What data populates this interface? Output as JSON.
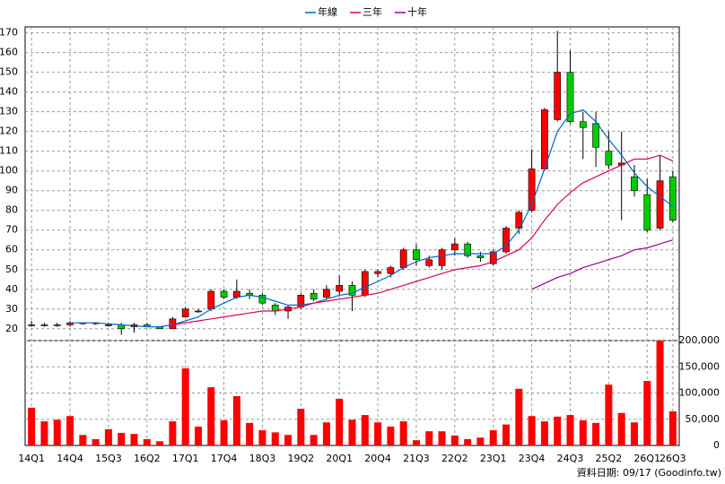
{
  "chart_data": {
    "type": "candlestick",
    "categories": [
      "14Q1",
      null,
      null,
      "14Q4",
      null,
      null,
      "15Q3",
      null,
      null,
      "16Q2",
      null,
      null,
      "17Q1",
      null,
      null,
      "17Q4",
      null,
      null,
      "18Q3",
      null,
      null,
      "19Q2",
      null,
      null,
      "20Q1",
      null,
      null,
      "20Q4",
      null,
      null,
      "21Q3",
      null,
      null,
      "22Q2",
      null,
      null,
      "23Q1",
      null,
      null,
      "23Q4",
      null,
      null,
      "24Q3",
      null,
      null,
      "25Q2",
      null,
      null,
      "26Q1",
      null,
      "26Q3"
    ],
    "open": [
      22,
      22,
      22,
      22,
      23,
      23,
      22,
      22,
      21,
      22,
      21,
      20,
      26,
      29,
      30,
      39,
      36,
      38,
      37,
      32,
      29,
      31,
      38,
      36,
      39,
      42,
      37,
      48,
      48,
      51,
      60,
      52,
      52,
      60,
      63,
      57,
      53,
      59,
      71,
      80,
      101,
      126,
      150,
      125,
      124,
      110,
      103,
      97,
      88,
      71,
      97
    ],
    "high": [
      24,
      23,
      23,
      24,
      23,
      23,
      23,
      23,
      23,
      23,
      21,
      26,
      31,
      30,
      40,
      40,
      45,
      40,
      38,
      33,
      32,
      38,
      40,
      42,
      47,
      44,
      50,
      50,
      52,
      61,
      63,
      57,
      61,
      66,
      64,
      59,
      60,
      72,
      80,
      111,
      132,
      171,
      161,
      130,
      130,
      120,
      120,
      103,
      96,
      108,
      100
    ],
    "low": [
      21,
      21,
      21,
      21,
      22,
      22,
      21,
      17,
      18,
      21,
      20,
      20,
      26,
      28,
      29,
      35,
      35,
      35,
      32,
      27,
      25,
      30,
      34,
      35,
      37,
      29,
      36,
      46,
      46,
      50,
      52,
      51,
      50,
      57,
      56,
      54,
      52,
      58,
      68,
      79,
      100,
      125,
      124,
      106,
      102,
      101,
      75,
      87,
      69,
      70,
      74
    ],
    "close": [
      22,
      22,
      22,
      23,
      23,
      23,
      22,
      20,
      22,
      21,
      20,
      25,
      30,
      29,
      39,
      36,
      39,
      37,
      33,
      29,
      31,
      37,
      35,
      40,
      42,
      37,
      49,
      49,
      51,
      60,
      55,
      55,
      60,
      63,
      57,
      56,
      59,
      71,
      79,
      101,
      131,
      150,
      125,
      122,
      112,
      103,
      104,
      90,
      70,
      95,
      75
    ],
    "up_color": "#ff0000",
    "down_color": "#00cc00",
    "series": [
      {
        "name": "年線",
        "color": "#0066cc",
        "values": [
          null,
          null,
          null,
          23,
          23,
          23,
          22.5,
          22,
          21.5,
          21,
          21,
          22,
          24,
          26,
          30,
          33,
          36,
          37,
          36,
          34,
          32,
          32,
          33,
          35,
          37,
          38,
          41,
          44,
          47,
          51,
          54,
          56,
          57,
          58,
          58,
          58,
          58,
          62,
          70,
          83,
          101,
          120,
          129,
          131,
          125,
          116,
          108,
          99,
          92,
          87,
          82
        ]
      },
      {
        "name": "三年",
        "color": "#dd0055",
        "values": [
          null,
          null,
          null,
          null,
          null,
          null,
          null,
          null,
          null,
          null,
          null,
          22,
          23,
          24,
          25,
          26,
          27,
          28,
          29,
          29,
          30,
          31,
          33,
          34,
          35,
          36,
          37,
          38,
          40,
          42,
          44,
          46,
          48,
          50,
          51,
          52,
          54,
          57,
          60,
          66,
          75,
          83,
          89,
          94,
          97,
          100,
          103,
          106,
          106,
          108,
          105
        ]
      },
      {
        "name": "十年",
        "color": "#990099",
        "values": [
          null,
          null,
          null,
          null,
          null,
          null,
          null,
          null,
          null,
          null,
          null,
          null,
          null,
          null,
          null,
          null,
          null,
          null,
          null,
          null,
          null,
          null,
          null,
          null,
          null,
          null,
          null,
          null,
          null,
          null,
          null,
          null,
          null,
          null,
          null,
          null,
          null,
          null,
          null,
          40,
          43,
          46,
          48,
          51,
          53,
          55,
          57,
          60,
          61,
          63,
          65
        ]
      }
    ],
    "ylim": [
      14,
      173
    ],
    "yticks": [
      20,
      30,
      40,
      50,
      60,
      70,
      80,
      90,
      100,
      110,
      120,
      130,
      140,
      150,
      160,
      170
    ],
    "grid": true,
    "volume": {
      "color": "#ff0000",
      "values": [
        72000,
        46000,
        49000,
        56000,
        20000,
        12000,
        31000,
        24000,
        22000,
        12000,
        8000,
        46000,
        147000,
        36000,
        111000,
        48000,
        94000,
        43000,
        29000,
        25000,
        20000,
        70000,
        20000,
        44000,
        89000,
        49000,
        58000,
        44000,
        36000,
        46000,
        10000,
        27000,
        27000,
        19000,
        12000,
        15000,
        29000,
        40000,
        108000,
        56000,
        46000,
        55000,
        58000,
        48000,
        43000,
        116000,
        62000,
        44000,
        123000,
        200000,
        65000
      ],
      "ylim": [
        0,
        200000
      ],
      "yticks": [
        0,
        {
          "value": 50000,
          "label": "50,000"
        },
        {
          "value": 100000,
          "label": "100,000"
        },
        {
          "value": 150000,
          "label": "150,000"
        },
        {
          "value": 200000,
          "label": "200,000"
        }
      ]
    },
    "footnote": "資料日期: 09/17  (Goodinfo.tw)"
  }
}
